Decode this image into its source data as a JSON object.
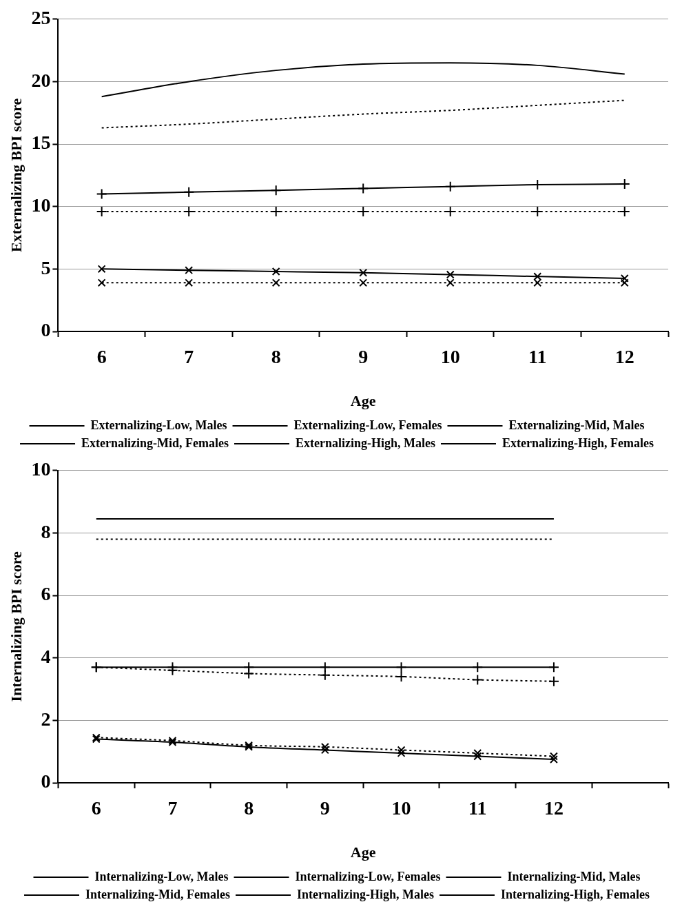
{
  "chart_data": [
    {
      "type": "line",
      "xlabel": "Age",
      "ylabel": "Externalizing BPI score",
      "categories": [
        "6",
        "7",
        "8",
        "9",
        "10",
        "11",
        "12"
      ],
      "ylim": [
        0,
        25
      ],
      "yticks": [
        0,
        5,
        10,
        15,
        20,
        25
      ],
      "grid": "y",
      "legend": "bottom",
      "series": [
        {
          "name": "Externalizing-Low, Males",
          "color": "#000000",
          "marker": "cross",
          "line_style": "solid",
          "values": [
            5.0,
            4.9,
            4.8,
            4.7,
            4.55,
            4.4,
            4.25
          ]
        },
        {
          "name": "Externalizing-Low, Females",
          "color": "#000000",
          "marker": "cross",
          "line_style": "dotted",
          "values": [
            3.9,
            3.9,
            3.9,
            3.9,
            3.9,
            3.9,
            3.9
          ]
        },
        {
          "name": "Externalizing-Mid, Males",
          "color": "#000000",
          "marker": "plus",
          "line_style": "solid",
          "values": [
            11.0,
            11.15,
            11.3,
            11.45,
            11.6,
            11.75,
            11.8
          ]
        },
        {
          "name": "Externalizing-Mid, Females",
          "color": "#000000",
          "marker": "plus",
          "line_style": "dotted",
          "values": [
            9.6,
            9.6,
            9.6,
            9.6,
            9.6,
            9.6,
            9.6
          ]
        },
        {
          "name": "Externalizing-High, Males",
          "color": "#000000",
          "marker": "none",
          "line_style": "solid",
          "values": [
            18.8,
            20.0,
            20.9,
            21.4,
            21.5,
            21.3,
            20.6
          ]
        },
        {
          "name": "Externalizing-High, Females",
          "color": "#000000",
          "marker": "none",
          "line_style": "dotted",
          "values": [
            16.3,
            16.6,
            17.0,
            17.4,
            17.7,
            18.1,
            18.5
          ]
        }
      ]
    },
    {
      "type": "line",
      "xlabel": "Age",
      "ylabel": "Internalizing BPI score",
      "categories": [
        "6",
        "7",
        "8",
        "9",
        "10",
        "11",
        "12",
        null
      ],
      "ylim": [
        0,
        10
      ],
      "yticks": [
        0,
        2,
        4,
        6,
        8,
        10
      ],
      "grid": "y",
      "legend": "bottom",
      "series": [
        {
          "name": "Internalizing-Low, Males",
          "color": "#000000",
          "marker": "cross",
          "line_style": "solid",
          "values": [
            1.4,
            1.3,
            1.15,
            1.05,
            0.95,
            0.85,
            0.75,
            null
          ]
        },
        {
          "name": "Internalizing-Low, Females",
          "color": "#000000",
          "marker": "cross",
          "line_style": "dotted",
          "values": [
            1.45,
            1.35,
            1.2,
            1.15,
            1.05,
            0.95,
            0.85,
            null
          ]
        },
        {
          "name": "Internalizing-Mid, Males",
          "color": "#000000",
          "marker": "plus",
          "line_style": "solid",
          "values": [
            3.7,
            3.7,
            3.7,
            3.7,
            3.7,
            3.7,
            3.7,
            null
          ]
        },
        {
          "name": "Internalizing-Mid, Females",
          "color": "#000000",
          "marker": "plus",
          "line_style": "dotted",
          "values": [
            3.7,
            3.6,
            3.5,
            3.45,
            3.4,
            3.3,
            3.25,
            null
          ]
        },
        {
          "name": "Internalizing-High, Males",
          "color": "#000000",
          "marker": "none",
          "line_style": "solid",
          "values": [
            8.45,
            8.45,
            8.45,
            8.45,
            8.45,
            8.45,
            8.45,
            null
          ]
        },
        {
          "name": "Internalizing-High, Females",
          "color": "#000000",
          "marker": "none",
          "line_style": "dotted",
          "values": [
            7.8,
            7.8,
            7.8,
            7.8,
            7.8,
            7.8,
            7.8,
            null
          ]
        }
      ]
    }
  ]
}
